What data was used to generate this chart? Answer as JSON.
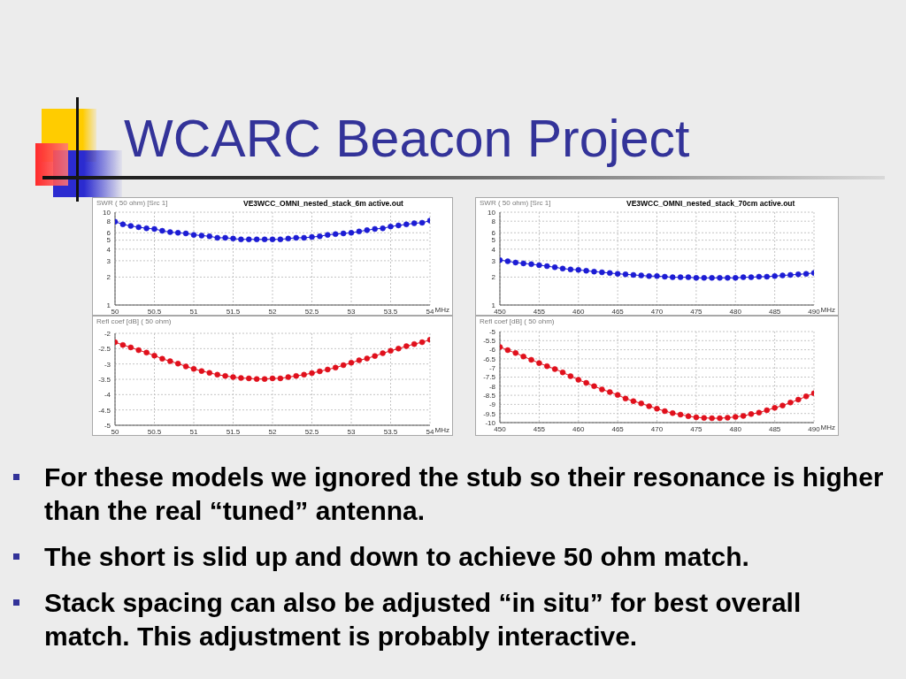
{
  "chart_data": [
    {
      "type": "other",
      "title": "WCARC Beacon Project"
    },
    {
      "type": "line",
      "title": "VE3WCC_OMNI_nested_stack_6m active.out",
      "ylabel": "SWR ( 50 ohm) [Src 1]",
      "xlabel": "MHz",
      "x": [
        50,
        50.1,
        50.2,
        50.3,
        50.4,
        50.5,
        50.6,
        50.7,
        50.8,
        50.9,
        51,
        51.1,
        51.2,
        51.3,
        51.4,
        51.5,
        51.6,
        51.7,
        51.8,
        51.9,
        52,
        52.1,
        52.2,
        52.3,
        52.4,
        52.5,
        52.6,
        52.7,
        52.8,
        52.9,
        53,
        53.1,
        53.2,
        53.3,
        53.4,
        53.5,
        53.6,
        53.7,
        53.8,
        53.9,
        54
      ],
      "values": [
        7.9,
        7.4,
        7.1,
        6.9,
        6.7,
        6.6,
        6.3,
        6.1,
        6.0,
        5.9,
        5.7,
        5.6,
        5.5,
        5.3,
        5.3,
        5.2,
        5.1,
        5.1,
        5.1,
        5.1,
        5.1,
        5.1,
        5.2,
        5.3,
        5.3,
        5.4,
        5.5,
        5.7,
        5.8,
        5.9,
        6.0,
        6.2,
        6.4,
        6.6,
        6.7,
        7.0,
        7.2,
        7.4,
        7.6,
        7.7,
        8.1
      ],
      "color": "#1c1cd4",
      "xlim": [
        50,
        54
      ],
      "xticks": [
        50,
        50.5,
        51,
        51.5,
        52,
        52.5,
        53,
        53.5,
        54
      ],
      "ylim": [
        1,
        10
      ],
      "yticks": [
        1,
        2,
        3,
        4,
        5,
        6,
        8,
        10
      ],
      "log": "y",
      "grid": true,
      "marker": "circle"
    },
    {
      "type": "line",
      "title": "VE3WCC_OMNI_nested_stack_70cm active.out",
      "ylabel": "SWR ( 50 ohm) [Src 1]",
      "xlabel": "MHz",
      "x": [
        450,
        451,
        452,
        453,
        454,
        455,
        456,
        457,
        458,
        459,
        460,
        461,
        462,
        463,
        464,
        465,
        466,
        467,
        468,
        469,
        470,
        471,
        472,
        473,
        474,
        475,
        476,
        477,
        478,
        479,
        480,
        481,
        482,
        483,
        484,
        485,
        486,
        487,
        488,
        489,
        490
      ],
      "values": [
        3.05,
        2.96,
        2.87,
        2.81,
        2.75,
        2.69,
        2.62,
        2.55,
        2.47,
        2.42,
        2.39,
        2.34,
        2.29,
        2.25,
        2.21,
        2.17,
        2.14,
        2.11,
        2.08,
        2.05,
        2.05,
        2.02,
        1.99,
        1.99,
        1.99,
        1.96,
        1.96,
        1.96,
        1.96,
        1.96,
        1.96,
        1.99,
        1.99,
        2.02,
        2.02,
        2.05,
        2.08,
        2.11,
        2.14,
        2.17,
        2.22
      ],
      "color": "#1c1cd4",
      "xlim": [
        450,
        490
      ],
      "xticks": [
        450,
        455,
        460,
        465,
        470,
        475,
        480,
        485,
        490
      ],
      "ylim": [
        1,
        10
      ],
      "yticks": [
        1,
        2,
        3,
        4,
        5,
        6,
        8,
        10
      ],
      "log": "y",
      "grid": true,
      "marker": "circle"
    },
    {
      "type": "line",
      "ylabel": "Refl coef [dB] ( 50 ohm)",
      "xlabel": "MHz",
      "x": [
        50,
        50.1,
        50.2,
        50.3,
        50.4,
        50.5,
        50.6,
        50.7,
        50.8,
        50.9,
        51,
        51.1,
        51.2,
        51.3,
        51.4,
        51.5,
        51.6,
        51.7,
        51.8,
        51.9,
        52,
        52.1,
        52.2,
        52.3,
        52.4,
        52.5,
        52.6,
        52.7,
        52.8,
        52.9,
        53,
        53.1,
        53.2,
        53.3,
        53.4,
        53.5,
        53.6,
        53.7,
        53.8,
        53.9,
        54
      ],
      "values": [
        -2.29,
        -2.38,
        -2.46,
        -2.55,
        -2.63,
        -2.73,
        -2.83,
        -2.91,
        -2.99,
        -3.08,
        -3.16,
        -3.23,
        -3.29,
        -3.35,
        -3.39,
        -3.43,
        -3.46,
        -3.47,
        -3.49,
        -3.49,
        -3.47,
        -3.47,
        -3.43,
        -3.39,
        -3.35,
        -3.3,
        -3.24,
        -3.18,
        -3.12,
        -3.04,
        -2.96,
        -2.88,
        -2.82,
        -2.74,
        -2.65,
        -2.57,
        -2.5,
        -2.42,
        -2.35,
        -2.29,
        -2.21
      ],
      "color": "#e0101c",
      "xlim": [
        50,
        54
      ],
      "xticks": [
        50,
        50.5,
        51,
        51.5,
        52,
        52.5,
        53,
        53.5,
        54
      ],
      "ylim": [
        -5,
        -2
      ],
      "yticks": [
        -5,
        -4.5,
        -4,
        -3.5,
        -3,
        -2.5,
        -2
      ],
      "grid": true,
      "marker": "circle"
    },
    {
      "type": "line",
      "ylabel": "Refl coef [dB] ( 50 ohm)",
      "xlabel": "MHz",
      "x": [
        450,
        451,
        452,
        453,
        454,
        455,
        456,
        457,
        458,
        459,
        460,
        461,
        462,
        463,
        464,
        465,
        466,
        467,
        468,
        469,
        470,
        471,
        472,
        473,
        474,
        475,
        476,
        477,
        478,
        479,
        480,
        481,
        482,
        483,
        484,
        485,
        486,
        487,
        488,
        489,
        490
      ],
      "values": [
        -5.85,
        -6.02,
        -6.18,
        -6.37,
        -6.55,
        -6.73,
        -6.9,
        -7.06,
        -7.24,
        -7.45,
        -7.65,
        -7.82,
        -8.0,
        -8.18,
        -8.32,
        -8.48,
        -8.68,
        -8.82,
        -8.95,
        -9.1,
        -9.24,
        -9.37,
        -9.48,
        -9.56,
        -9.65,
        -9.71,
        -9.74,
        -9.76,
        -9.76,
        -9.73,
        -9.69,
        -9.63,
        -9.53,
        -9.45,
        -9.32,
        -9.19,
        -9.06,
        -8.9,
        -8.74,
        -8.56,
        -8.39
      ],
      "color": "#e0101c",
      "xlim": [
        450,
        490
      ],
      "xticks": [
        450,
        455,
        460,
        465,
        470,
        475,
        480,
        485,
        490
      ],
      "ylim": [
        -10,
        -5
      ],
      "yticks": [
        -10,
        -9.5,
        -9,
        -8.5,
        -8,
        -7.5,
        -7,
        -6.5,
        -6,
        -5.5,
        -5
      ],
      "grid": true,
      "marker": "circle"
    },
    {
      "type": "other",
      "annotations": [
        "For these models we ignored the stub so their resonance is higher than the real “tuned” antenna.",
        "The short is slid up and down to achieve 50 ohm match.",
        "Stack spacing can also be adjusted “in situ” for best overall match. This adjustment is probably interactive."
      ]
    }
  ]
}
